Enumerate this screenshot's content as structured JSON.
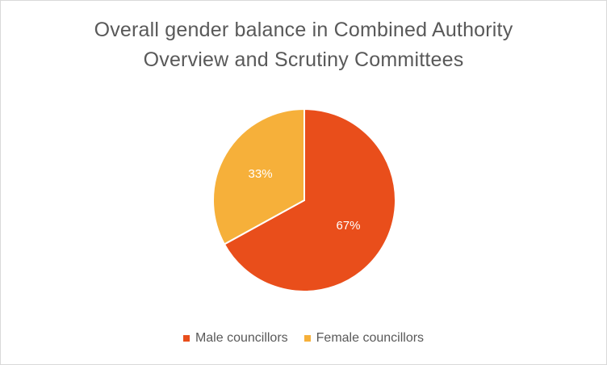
{
  "chart_data": {
    "type": "pie",
    "title_lines": [
      "Overall gender balance in Combined Authority",
      "Overview and Scrutiny Committees"
    ],
    "categories": [
      "Male councillors",
      "Female councillors"
    ],
    "values": [
      67,
      33
    ],
    "data_labels": [
      "67%",
      "33%"
    ],
    "colors": [
      "#E94E1B",
      "#F6B03A"
    ],
    "legend_position": "bottom"
  }
}
